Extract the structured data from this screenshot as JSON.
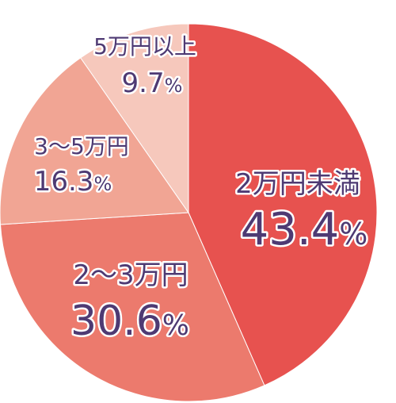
{
  "chart_data": {
    "type": "pie",
    "start": "top",
    "direction": "clockwise",
    "slices": [
      {
        "label": "2万円未満",
        "value": 43.4,
        "value_text": "43.4",
        "unit": "%",
        "color": "#e7524f"
      },
      {
        "label": "2〜3万円",
        "value": 30.6,
        "value_text": "30.6",
        "unit": "%",
        "color": "#ec7a6d"
      },
      {
        "label": "3〜5万円",
        "value": 16.3,
        "value_text": "16.3",
        "unit": "%",
        "color": "#f1a594"
      },
      {
        "label": "5万円以上",
        "value": 9.7,
        "value_text": "9.7",
        "unit": "%",
        "color": "#f6c8bc"
      }
    ],
    "text_color": "#4e3a73",
    "legend": "none"
  }
}
